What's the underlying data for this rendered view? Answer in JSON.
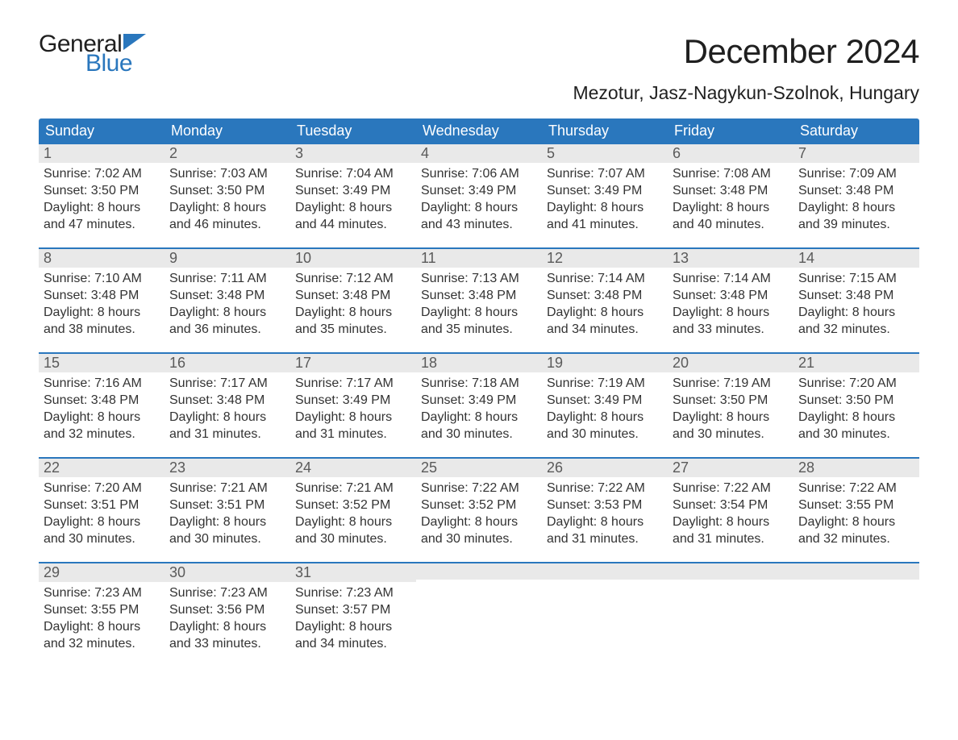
{
  "colors": {
    "header_bg": "#2a77bd",
    "header_text": "#ffffff",
    "week_divider": "#2a77bd",
    "daynum_bg": "#e9e9e9",
    "daynum_text": "#5a5a5a",
    "body_text": "#333333",
    "page_bg": "#ffffff",
    "logo_blue": "#2a77bd",
    "logo_dark": "#1f1f1f"
  },
  "typography": {
    "month_title_fontsize": 42,
    "location_fontsize": 23,
    "weekday_fontsize": 18,
    "daynum_fontsize": 18,
    "body_fontsize": 16,
    "logo_fontsize": 30
  },
  "header": {
    "logo_top": "General",
    "logo_bottom": "Blue",
    "month_title": "December 2024",
    "location": "Mezotur, Jasz-Nagykun-Szolnok, Hungary"
  },
  "weekdays": [
    "Sunday",
    "Monday",
    "Tuesday",
    "Wednesday",
    "Thursday",
    "Friday",
    "Saturday"
  ],
  "weeks": [
    [
      {
        "n": "1",
        "sunrise": "Sunrise: 7:02 AM",
        "sunset": "Sunset: 3:50 PM",
        "day1": "Daylight: 8 hours",
        "day2": "and 47 minutes."
      },
      {
        "n": "2",
        "sunrise": "Sunrise: 7:03 AM",
        "sunset": "Sunset: 3:50 PM",
        "day1": "Daylight: 8 hours",
        "day2": "and 46 minutes."
      },
      {
        "n": "3",
        "sunrise": "Sunrise: 7:04 AM",
        "sunset": "Sunset: 3:49 PM",
        "day1": "Daylight: 8 hours",
        "day2": "and 44 minutes."
      },
      {
        "n": "4",
        "sunrise": "Sunrise: 7:06 AM",
        "sunset": "Sunset: 3:49 PM",
        "day1": "Daylight: 8 hours",
        "day2": "and 43 minutes."
      },
      {
        "n": "5",
        "sunrise": "Sunrise: 7:07 AM",
        "sunset": "Sunset: 3:49 PM",
        "day1": "Daylight: 8 hours",
        "day2": "and 41 minutes."
      },
      {
        "n": "6",
        "sunrise": "Sunrise: 7:08 AM",
        "sunset": "Sunset: 3:48 PM",
        "day1": "Daylight: 8 hours",
        "day2": "and 40 minutes."
      },
      {
        "n": "7",
        "sunrise": "Sunrise: 7:09 AM",
        "sunset": "Sunset: 3:48 PM",
        "day1": "Daylight: 8 hours",
        "day2": "and 39 minutes."
      }
    ],
    [
      {
        "n": "8",
        "sunrise": "Sunrise: 7:10 AM",
        "sunset": "Sunset: 3:48 PM",
        "day1": "Daylight: 8 hours",
        "day2": "and 38 minutes."
      },
      {
        "n": "9",
        "sunrise": "Sunrise: 7:11 AM",
        "sunset": "Sunset: 3:48 PM",
        "day1": "Daylight: 8 hours",
        "day2": "and 36 minutes."
      },
      {
        "n": "10",
        "sunrise": "Sunrise: 7:12 AM",
        "sunset": "Sunset: 3:48 PM",
        "day1": "Daylight: 8 hours",
        "day2": "and 35 minutes."
      },
      {
        "n": "11",
        "sunrise": "Sunrise: 7:13 AM",
        "sunset": "Sunset: 3:48 PM",
        "day1": "Daylight: 8 hours",
        "day2": "and 35 minutes."
      },
      {
        "n": "12",
        "sunrise": "Sunrise: 7:14 AM",
        "sunset": "Sunset: 3:48 PM",
        "day1": "Daylight: 8 hours",
        "day2": "and 34 minutes."
      },
      {
        "n": "13",
        "sunrise": "Sunrise: 7:14 AM",
        "sunset": "Sunset: 3:48 PM",
        "day1": "Daylight: 8 hours",
        "day2": "and 33 minutes."
      },
      {
        "n": "14",
        "sunrise": "Sunrise: 7:15 AM",
        "sunset": "Sunset: 3:48 PM",
        "day1": "Daylight: 8 hours",
        "day2": "and 32 minutes."
      }
    ],
    [
      {
        "n": "15",
        "sunrise": "Sunrise: 7:16 AM",
        "sunset": "Sunset: 3:48 PM",
        "day1": "Daylight: 8 hours",
        "day2": "and 32 minutes."
      },
      {
        "n": "16",
        "sunrise": "Sunrise: 7:17 AM",
        "sunset": "Sunset: 3:48 PM",
        "day1": "Daylight: 8 hours",
        "day2": "and 31 minutes."
      },
      {
        "n": "17",
        "sunrise": "Sunrise: 7:17 AM",
        "sunset": "Sunset: 3:49 PM",
        "day1": "Daylight: 8 hours",
        "day2": "and 31 minutes."
      },
      {
        "n": "18",
        "sunrise": "Sunrise: 7:18 AM",
        "sunset": "Sunset: 3:49 PM",
        "day1": "Daylight: 8 hours",
        "day2": "and 30 minutes."
      },
      {
        "n": "19",
        "sunrise": "Sunrise: 7:19 AM",
        "sunset": "Sunset: 3:49 PM",
        "day1": "Daylight: 8 hours",
        "day2": "and 30 minutes."
      },
      {
        "n": "20",
        "sunrise": "Sunrise: 7:19 AM",
        "sunset": "Sunset: 3:50 PM",
        "day1": "Daylight: 8 hours",
        "day2": "and 30 minutes."
      },
      {
        "n": "21",
        "sunrise": "Sunrise: 7:20 AM",
        "sunset": "Sunset: 3:50 PM",
        "day1": "Daylight: 8 hours",
        "day2": "and 30 minutes."
      }
    ],
    [
      {
        "n": "22",
        "sunrise": "Sunrise: 7:20 AM",
        "sunset": "Sunset: 3:51 PM",
        "day1": "Daylight: 8 hours",
        "day2": "and 30 minutes."
      },
      {
        "n": "23",
        "sunrise": "Sunrise: 7:21 AM",
        "sunset": "Sunset: 3:51 PM",
        "day1": "Daylight: 8 hours",
        "day2": "and 30 minutes."
      },
      {
        "n": "24",
        "sunrise": "Sunrise: 7:21 AM",
        "sunset": "Sunset: 3:52 PM",
        "day1": "Daylight: 8 hours",
        "day2": "and 30 minutes."
      },
      {
        "n": "25",
        "sunrise": "Sunrise: 7:22 AM",
        "sunset": "Sunset: 3:52 PM",
        "day1": "Daylight: 8 hours",
        "day2": "and 30 minutes."
      },
      {
        "n": "26",
        "sunrise": "Sunrise: 7:22 AM",
        "sunset": "Sunset: 3:53 PM",
        "day1": "Daylight: 8 hours",
        "day2": "and 31 minutes."
      },
      {
        "n": "27",
        "sunrise": "Sunrise: 7:22 AM",
        "sunset": "Sunset: 3:54 PM",
        "day1": "Daylight: 8 hours",
        "day2": "and 31 minutes."
      },
      {
        "n": "28",
        "sunrise": "Sunrise: 7:22 AM",
        "sunset": "Sunset: 3:55 PM",
        "day1": "Daylight: 8 hours",
        "day2": "and 32 minutes."
      }
    ],
    [
      {
        "n": "29",
        "sunrise": "Sunrise: 7:23 AM",
        "sunset": "Sunset: 3:55 PM",
        "day1": "Daylight: 8 hours",
        "day2": "and 32 minutes."
      },
      {
        "n": "30",
        "sunrise": "Sunrise: 7:23 AM",
        "sunset": "Sunset: 3:56 PM",
        "day1": "Daylight: 8 hours",
        "day2": "and 33 minutes."
      },
      {
        "n": "31",
        "sunrise": "Sunrise: 7:23 AM",
        "sunset": "Sunset: 3:57 PM",
        "day1": "Daylight: 8 hours",
        "day2": "and 34 minutes."
      },
      {
        "n": "",
        "sunrise": "",
        "sunset": "",
        "day1": "",
        "day2": ""
      },
      {
        "n": "",
        "sunrise": "",
        "sunset": "",
        "day1": "",
        "day2": ""
      },
      {
        "n": "",
        "sunrise": "",
        "sunset": "",
        "day1": "",
        "day2": ""
      },
      {
        "n": "",
        "sunrise": "",
        "sunset": "",
        "day1": "",
        "day2": ""
      }
    ]
  ]
}
